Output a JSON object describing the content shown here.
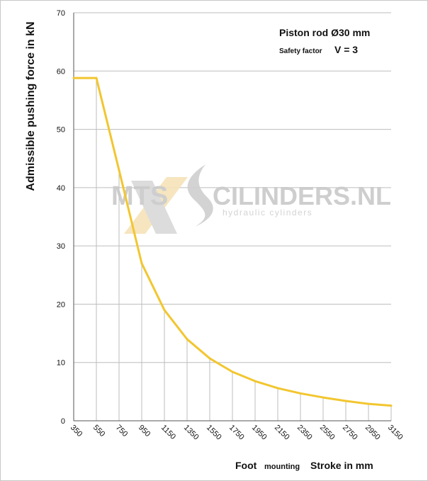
{
  "chart_data": {
    "type": "line",
    "title": "",
    "xlabel": "",
    "ylabel": "Admissible pushing force in kN",
    "x_tick_labels": [
      "350",
      "550",
      "750",
      "950",
      "1150",
      "1350",
      "1550",
      "1750",
      "1950",
      "2150",
      "2350",
      "2550",
      "2750",
      "2950",
      "3150"
    ],
    "y_tick_labels": [
      "0",
      "10",
      "20",
      "30",
      "40",
      "50",
      "60",
      "70"
    ],
    "xlim": [
      350,
      3150
    ],
    "ylim": [
      0,
      70
    ],
    "grid": true,
    "series": [
      {
        "name": "",
        "color": "#f2c62f",
        "x": [
          350,
          550,
          750,
          950,
          1150,
          1350,
          1550,
          1750,
          1950,
          2150,
          2350,
          2550,
          2750,
          2950,
          3150
        ],
        "y": [
          58.8,
          58.8,
          43.0,
          27.0,
          19.0,
          14.0,
          10.7,
          8.4,
          6.8,
          5.6,
          4.7,
          4.0,
          3.4,
          2.9,
          2.6
        ]
      }
    ],
    "annotations": {
      "line1": "Piston rod Ø30 mm",
      "line2_prefix": "Safety factor",
      "line2_value": "V = 3"
    },
    "xlabel_parts": {
      "bold_1": "Foot",
      "small": "mounting",
      "bold_2": "Stroke in mm"
    },
    "watermark": {
      "brand_left": "MTS",
      "brand_right": "CILINDERS.NL",
      "tagline": "hydraulic cylinders"
    }
  }
}
